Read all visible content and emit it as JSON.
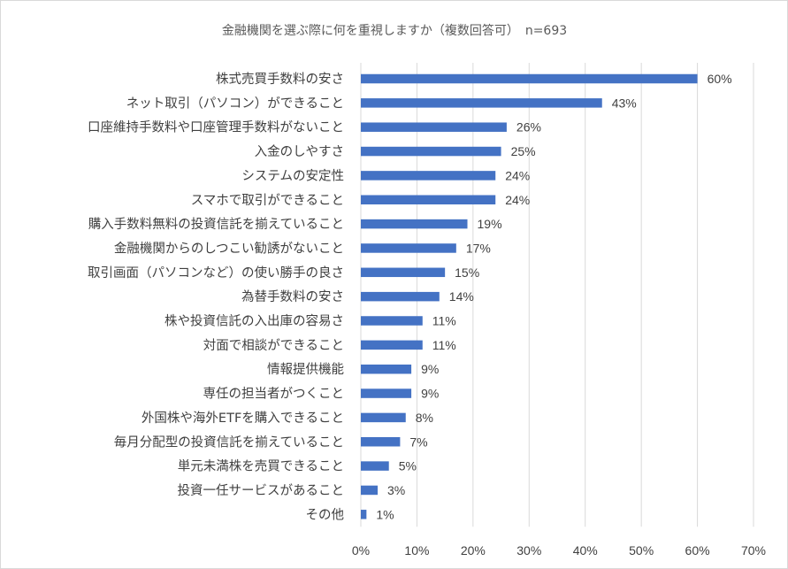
{
  "chart_data": {
    "type": "bar",
    "orientation": "horizontal",
    "title": "金融機関を選ぶ際に何を重視しますか（複数回答可）　n=693",
    "categories": [
      "株式売買手数料の安さ",
      "ネット取引（パソコン）ができること",
      "口座維持手数料や口座管理手数料がないこと",
      "入金のしやすさ",
      "システムの安定性",
      "スマホで取引ができること",
      "購入手数料無料の投資信託を揃えていること",
      "金融機関からのしつこい勧誘がないこと",
      "取引画面（パソコンなど）の使い勝手の良さ",
      "為替手数料の安さ",
      "株や投資信託の入出庫の容易さ",
      "対面で相談ができること",
      "情報提供機能",
      "専任の担当者がつくこと",
      "外国株や海外ETFを購入できること",
      "毎月分配型の投資信託を揃えていること",
      "単元未満株を売買できること",
      "投資一任サービスがあること",
      "その他"
    ],
    "values": [
      60,
      43,
      26,
      25,
      24,
      24,
      19,
      17,
      15,
      14,
      11,
      11,
      9,
      9,
      8,
      7,
      5,
      3,
      1
    ],
    "data_labels": [
      "60%",
      "43%",
      "26%",
      "25%",
      "24%",
      "24%",
      "19%",
      "17%",
      "15%",
      "14%",
      "11%",
      "11%",
      "9%",
      "9%",
      "8%",
      "7%",
      "5%",
      "3%",
      "1%"
    ],
    "xlim": [
      0,
      70
    ],
    "x_ticks": [
      "0%",
      "10%",
      "20%",
      "30%",
      "40%",
      "50%",
      "60%",
      "70%"
    ],
    "grid": true,
    "legend": false,
    "bar_color": "#4472c4"
  }
}
